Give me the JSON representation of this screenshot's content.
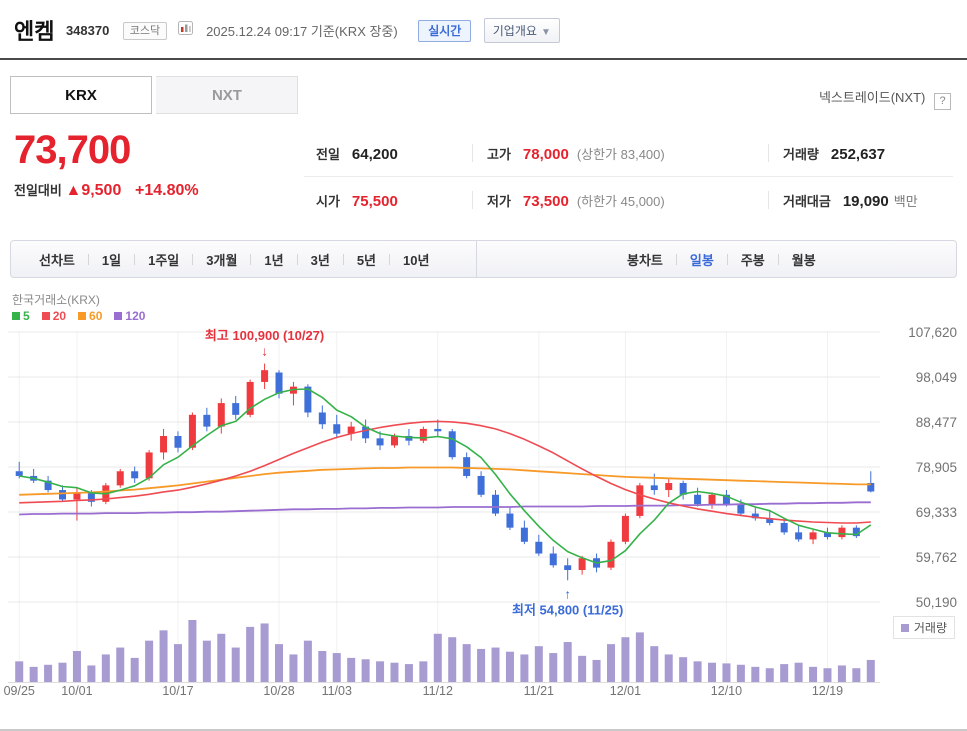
{
  "header": {
    "stock_name": "엔켐",
    "stock_code": "348370",
    "market_badge": "코스닥",
    "datetime_note": "2025.12.24 09:17 기준(KRX 장중)",
    "realtime_badge": "실시간",
    "company_overview_button": "기업개요",
    "chevron_down": "▼"
  },
  "tabs": {
    "krx": "KRX",
    "nxt": "NXT",
    "nextrade_label": "넥스트레이드(NXT)",
    "help_icon": "?"
  },
  "price": {
    "current": "73,700",
    "change_label": "전일대비",
    "change_arrow": "▲",
    "change_value": "9,500",
    "change_percent": "+14.80%"
  },
  "summary": {
    "prev_label": "전일",
    "prev": "64,200",
    "high_label": "고가",
    "high": "78,000",
    "high_limit": "(상한가 83,400)",
    "volume_label": "거래량",
    "volume": "252,637",
    "open_label": "시가",
    "open": "75,500",
    "low_label": "저가",
    "low": "73,500",
    "low_limit": "(하한가 45,000)",
    "value_label": "거래대금",
    "value": "19,090",
    "value_unit": "백만"
  },
  "toolbar": {
    "line_chart_label": "선차트",
    "periods": [
      "1일",
      "1주일",
      "3개월",
      "1년",
      "3년",
      "5년",
      "10년"
    ],
    "candle_chart_label": "봉차트",
    "candle_periods": [
      "일봉",
      "주봉",
      "월봉"
    ],
    "selected_candle_period": "일봉"
  },
  "chart": {
    "source_label": "한국거래소(KRX)",
    "volume_legend": "거래량",
    "ma_legend": [
      {
        "label": "5",
        "color": "#36b24a"
      },
      {
        "label": "20",
        "color": "#ef4b52"
      },
      {
        "label": "60",
        "color": "#f79a28"
      },
      {
        "label": "120",
        "color": "#9a6dd0"
      }
    ],
    "annotation_high": "최고 100,900 (10/27)",
    "annotation_low": "최저 54,800 (11/25)",
    "arrow_down": "↓",
    "arrow_up": "↑"
  },
  "colors": {
    "price_up_text": "#e5232e",
    "candle_up": "#ef3b3f",
    "candle_down": "#3f6fd8",
    "ma5": "#36b24a",
    "ma20": "#ef4b52",
    "ma60": "#f79a28",
    "ma120": "#9a6dd0",
    "volume": "#a79bd2",
    "annotation_high": "#e5323c",
    "annotation_low": "#3a6bd8",
    "grid": "#e8e8e8",
    "grid_vertical": "#f1f1f1",
    "axis_text": "#737373"
  },
  "chart_data": {
    "type": "candlestick+volume",
    "y_ticks": [
      107620,
      98049,
      88477,
      78905,
      69333,
      59762,
      50190
    ],
    "x_ticks": [
      {
        "label": "09/25",
        "i": 0
      },
      {
        "label": "10/01",
        "i": 4
      },
      {
        "label": "10/17",
        "i": 11
      },
      {
        "label": "10/28",
        "i": 18
      },
      {
        "label": "11/03",
        "i": 22
      },
      {
        "label": "11/12",
        "i": 29
      },
      {
        "label": "11/21",
        "i": 36
      },
      {
        "label": "12/01",
        "i": 42
      },
      {
        "label": "12/10",
        "i": 49
      },
      {
        "label": "12/19",
        "i": 56
      }
    ],
    "high_point": {
      "index": 17,
      "price": 100900
    },
    "low_point": {
      "index": 38,
      "price": 54800
    },
    "candles": [
      [
        78000,
        80000,
        76500,
        77000,
        30
      ],
      [
        77000,
        78500,
        75500,
        76000,
        22
      ],
      [
        76000,
        77000,
        73500,
        74000,
        25
      ],
      [
        74000,
        75000,
        71500,
        72000,
        28
      ],
      [
        72000,
        74500,
        67500,
        73500,
        45
      ],
      [
        73500,
        74000,
        70500,
        71500,
        24
      ],
      [
        71500,
        75500,
        71000,
        75000,
        40
      ],
      [
        75000,
        78500,
        74500,
        78000,
        50
      ],
      [
        78000,
        79000,
        75500,
        76500,
        35
      ],
      [
        76500,
        82500,
        76000,
        82000,
        60
      ],
      [
        82000,
        87000,
        80500,
        85500,
        75
      ],
      [
        85500,
        86500,
        82000,
        83000,
        55
      ],
      [
        83000,
        90500,
        82500,
        90000,
        90
      ],
      [
        90000,
        91500,
        86500,
        87500,
        60
      ],
      [
        87500,
        93500,
        86000,
        92500,
        70
      ],
      [
        92500,
        94000,
        89000,
        90000,
        50
      ],
      [
        90000,
        97500,
        89500,
        97000,
        80
      ],
      [
        97000,
        100900,
        95500,
        99500,
        85
      ],
      [
        99000,
        99500,
        93500,
        94500,
        55
      ],
      [
        94500,
        97000,
        92000,
        96000,
        40
      ],
      [
        96000,
        96500,
        89500,
        90500,
        60
      ],
      [
        90500,
        92000,
        87000,
        88000,
        45
      ],
      [
        88000,
        90000,
        85000,
        86000,
        42
      ],
      [
        86000,
        88500,
        84500,
        87500,
        35
      ],
      [
        87500,
        89000,
        84000,
        85000,
        33
      ],
      [
        85000,
        86500,
        82500,
        83500,
        30
      ],
      [
        83500,
        86000,
        83000,
        85500,
        28
      ],
      [
        85500,
        87000,
        83500,
        84500,
        26
      ],
      [
        84500,
        87500,
        84000,
        87000,
        30
      ],
      [
        87000,
        89000,
        85500,
        86500,
        70
      ],
      [
        86500,
        87000,
        80500,
        81000,
        65
      ],
      [
        81000,
        82000,
        76500,
        77000,
        55
      ],
      [
        77000,
        78000,
        72500,
        73000,
        48
      ],
      [
        73000,
        74000,
        68500,
        69000,
        50
      ],
      [
        69000,
        70500,
        65500,
        66000,
        44
      ],
      [
        66000,
        67500,
        62500,
        63000,
        40
      ],
      [
        63000,
        64500,
        60000,
        60500,
        52
      ],
      [
        60500,
        62000,
        57500,
        58000,
        42
      ],
      [
        58000,
        59500,
        54800,
        57000,
        58
      ],
      [
        57000,
        60000,
        56000,
        59500,
        38
      ],
      [
        59500,
        60500,
        56500,
        57500,
        32
      ],
      [
        57500,
        63500,
        57000,
        63000,
        55
      ],
      [
        63000,
        69000,
        62500,
        68500,
        65
      ],
      [
        68500,
        75500,
        68000,
        75000,
        72
      ],
      [
        75000,
        77500,
        73000,
        74000,
        52
      ],
      [
        74000,
        76500,
        72500,
        75500,
        40
      ],
      [
        75500,
        76000,
        72000,
        73000,
        36
      ],
      [
        73000,
        74500,
        70500,
        71000,
        30
      ],
      [
        71000,
        73500,
        70000,
        73000,
        28
      ],
      [
        73000,
        74000,
        70500,
        71000,
        27
      ],
      [
        71000,
        72000,
        68500,
        69000,
        25
      ],
      [
        69000,
        70500,
        67500,
        68000,
        22
      ],
      [
        68000,
        69500,
        66500,
        67000,
        20
      ],
      [
        67000,
        68000,
        64500,
        65000,
        26
      ],
      [
        65000,
        66500,
        63000,
        63500,
        28
      ],
      [
        63500,
        65500,
        62500,
        65000,
        22
      ],
      [
        65000,
        66000,
        63500,
        64000,
        20
      ],
      [
        64000,
        66500,
        63500,
        66000,
        24
      ],
      [
        66000,
        66500,
        63800,
        64200,
        20
      ],
      [
        75500,
        78000,
        73500,
        73700,
        32
      ]
    ],
    "ma20": [
      71300,
      71400,
      71500,
      71600,
      71800,
      71900,
      72100,
      72400,
      72700,
      73100,
      73600,
      74000,
      74600,
      75300,
      76100,
      77000,
      78000,
      79200,
      80500,
      81800,
      83000,
      84200,
      85200,
      86000,
      86700,
      87300,
      87800,
      88200,
      88500,
      88600,
      88500,
      88200,
      87700,
      87000,
      86000,
      84800,
      83400,
      81900,
      80200,
      78500,
      76900,
      75400,
      74100,
      73000,
      72100,
      71300,
      70600,
      70000,
      69500,
      69000,
      68600,
      68200,
      67900,
      67600,
      67400,
      67200,
      67100,
      67000,
      67000,
      67200
    ],
    "ma60": [
      73000,
      73100,
      73200,
      73300,
      73400,
      73500,
      73700,
      73900,
      74100,
      74400,
      74700,
      75000,
      75400,
      75800,
      76200,
      76600,
      77000,
      77400,
      77700,
      77900,
      78100,
      78300,
      78400,
      78500,
      78600,
      78700,
      78700,
      78800,
      78800,
      78800,
      78800,
      78700,
      78600,
      78500,
      78400,
      78200,
      78000,
      77800,
      77600,
      77400,
      77200,
      77000,
      76800,
      76700,
      76600,
      76500,
      76400,
      76300,
      76200,
      76100,
      76000,
      75900,
      75800,
      75700,
      75600,
      75500,
      75400,
      75300,
      75200,
      75200
    ],
    "ma120": [
      68800,
      68900,
      68900,
      69000,
      69000,
      69000,
      69100,
      69100,
      69100,
      69200,
      69200,
      69300,
      69300,
      69400,
      69400,
      69500,
      69600,
      69700,
      69800,
      69900,
      69900,
      70000,
      70000,
      70100,
      70100,
      70200,
      70200,
      70300,
      70300,
      70300,
      70400,
      70400,
      70400,
      70400,
      70400,
      70500,
      70500,
      70500,
      70500,
      70500,
      70600,
      70600,
      70600,
      70700,
      70700,
      70700,
      70800,
      70800,
      70900,
      70900,
      71000,
      71000,
      71100,
      71100,
      71200,
      71200,
      71300,
      71300,
      71400,
      71400
    ]
  }
}
